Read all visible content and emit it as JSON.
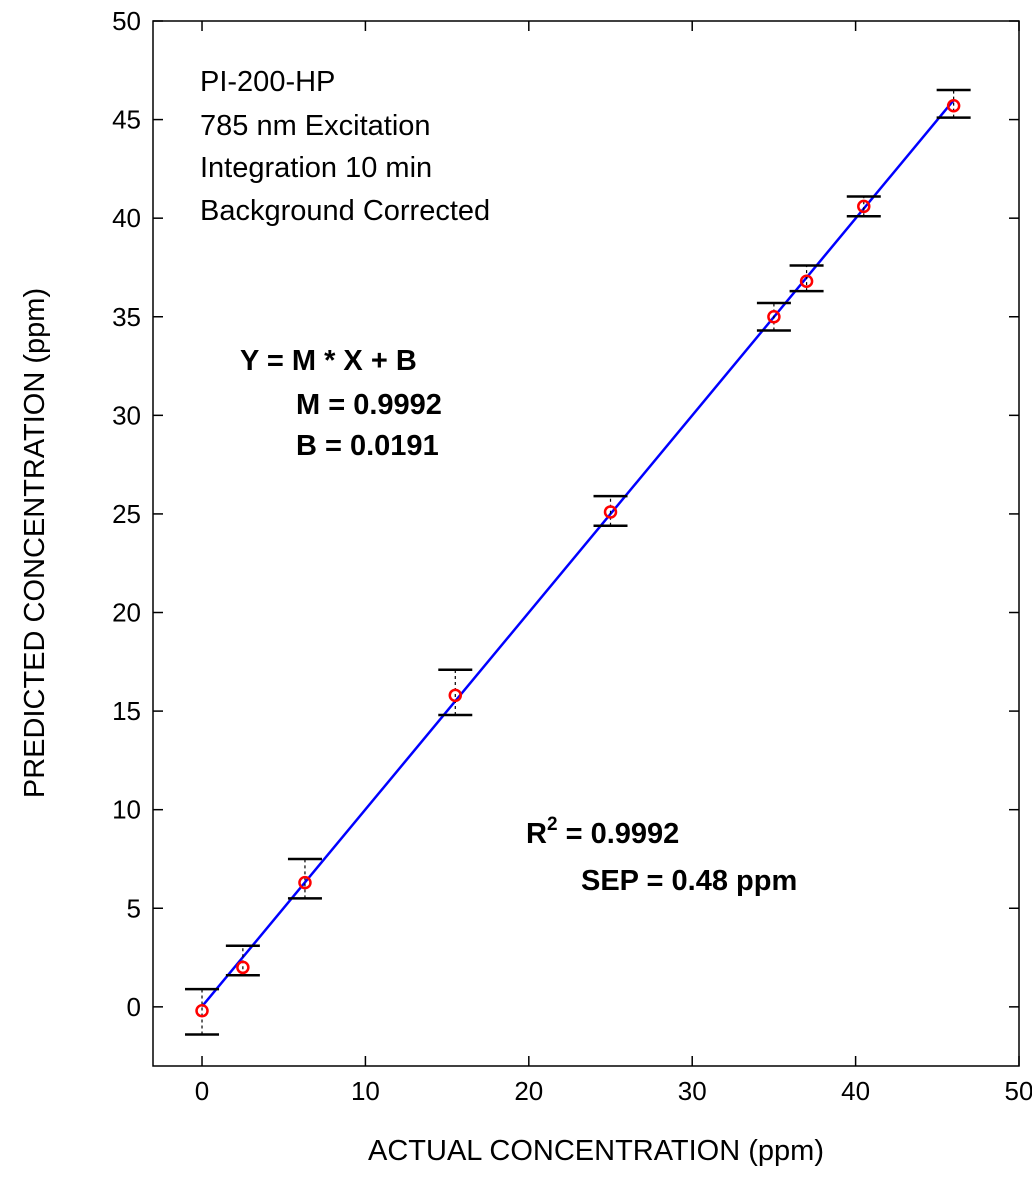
{
  "chart_data": {
    "type": "scatter",
    "title": "",
    "xlabel": "ACTUAL CONCENTRATION (ppm)",
    "ylabel": "PREDICTED CONCENTRATION (ppm)",
    "xlim": [
      -3,
      50
    ],
    "ylim": [
      -3,
      50
    ],
    "x_ticks": [
      0,
      10,
      20,
      30,
      40,
      50
    ],
    "y_ticks": [
      0,
      5,
      10,
      15,
      20,
      25,
      30,
      35,
      40,
      45,
      50
    ],
    "grid": false,
    "points": [
      {
        "x": 0,
        "y": -0.2,
        "err_low": -1.4,
        "err_high": 0.9
      },
      {
        "x": 2.5,
        "y": 2.0,
        "err_low": 1.6,
        "err_high": 3.1
      },
      {
        "x": 6.3,
        "y": 6.3,
        "err_low": 5.5,
        "err_high": 7.5
      },
      {
        "x": 15.5,
        "y": 15.8,
        "err_low": 14.8,
        "err_high": 17.1
      },
      {
        "x": 25,
        "y": 25.1,
        "err_low": 24.4,
        "err_high": 25.9
      },
      {
        "x": 35,
        "y": 35.0,
        "err_low": 34.3,
        "err_high": 35.7
      },
      {
        "x": 37,
        "y": 36.8,
        "err_low": 36.3,
        "err_high": 37.6
      },
      {
        "x": 40.5,
        "y": 40.6,
        "err_low": 40.1,
        "err_high": 41.1
      },
      {
        "x": 46,
        "y": 45.7,
        "err_low": 45.1,
        "err_high": 46.5
      }
    ],
    "fit_line": {
      "slope": 0.9992,
      "intercept": 0.0191,
      "x_range": [
        0,
        46
      ]
    },
    "colors": {
      "points": "#ff0000",
      "fit_line": "#0000ff",
      "error_bars": "#000000"
    },
    "annotations": {
      "instrument": [
        "PI-200-HP",
        "785 nm Excitation",
        "Integration 10 min",
        "Background Corrected"
      ],
      "equation": "Y = M * X + B",
      "m_line": "M = 0.9992",
      "b_line": "B = 0.0191",
      "r2_prefix": "R",
      "r2_sup": "2",
      "r2_value": " = 0.9992",
      "sep_line": "SEP = 0.48 ppm"
    }
  }
}
